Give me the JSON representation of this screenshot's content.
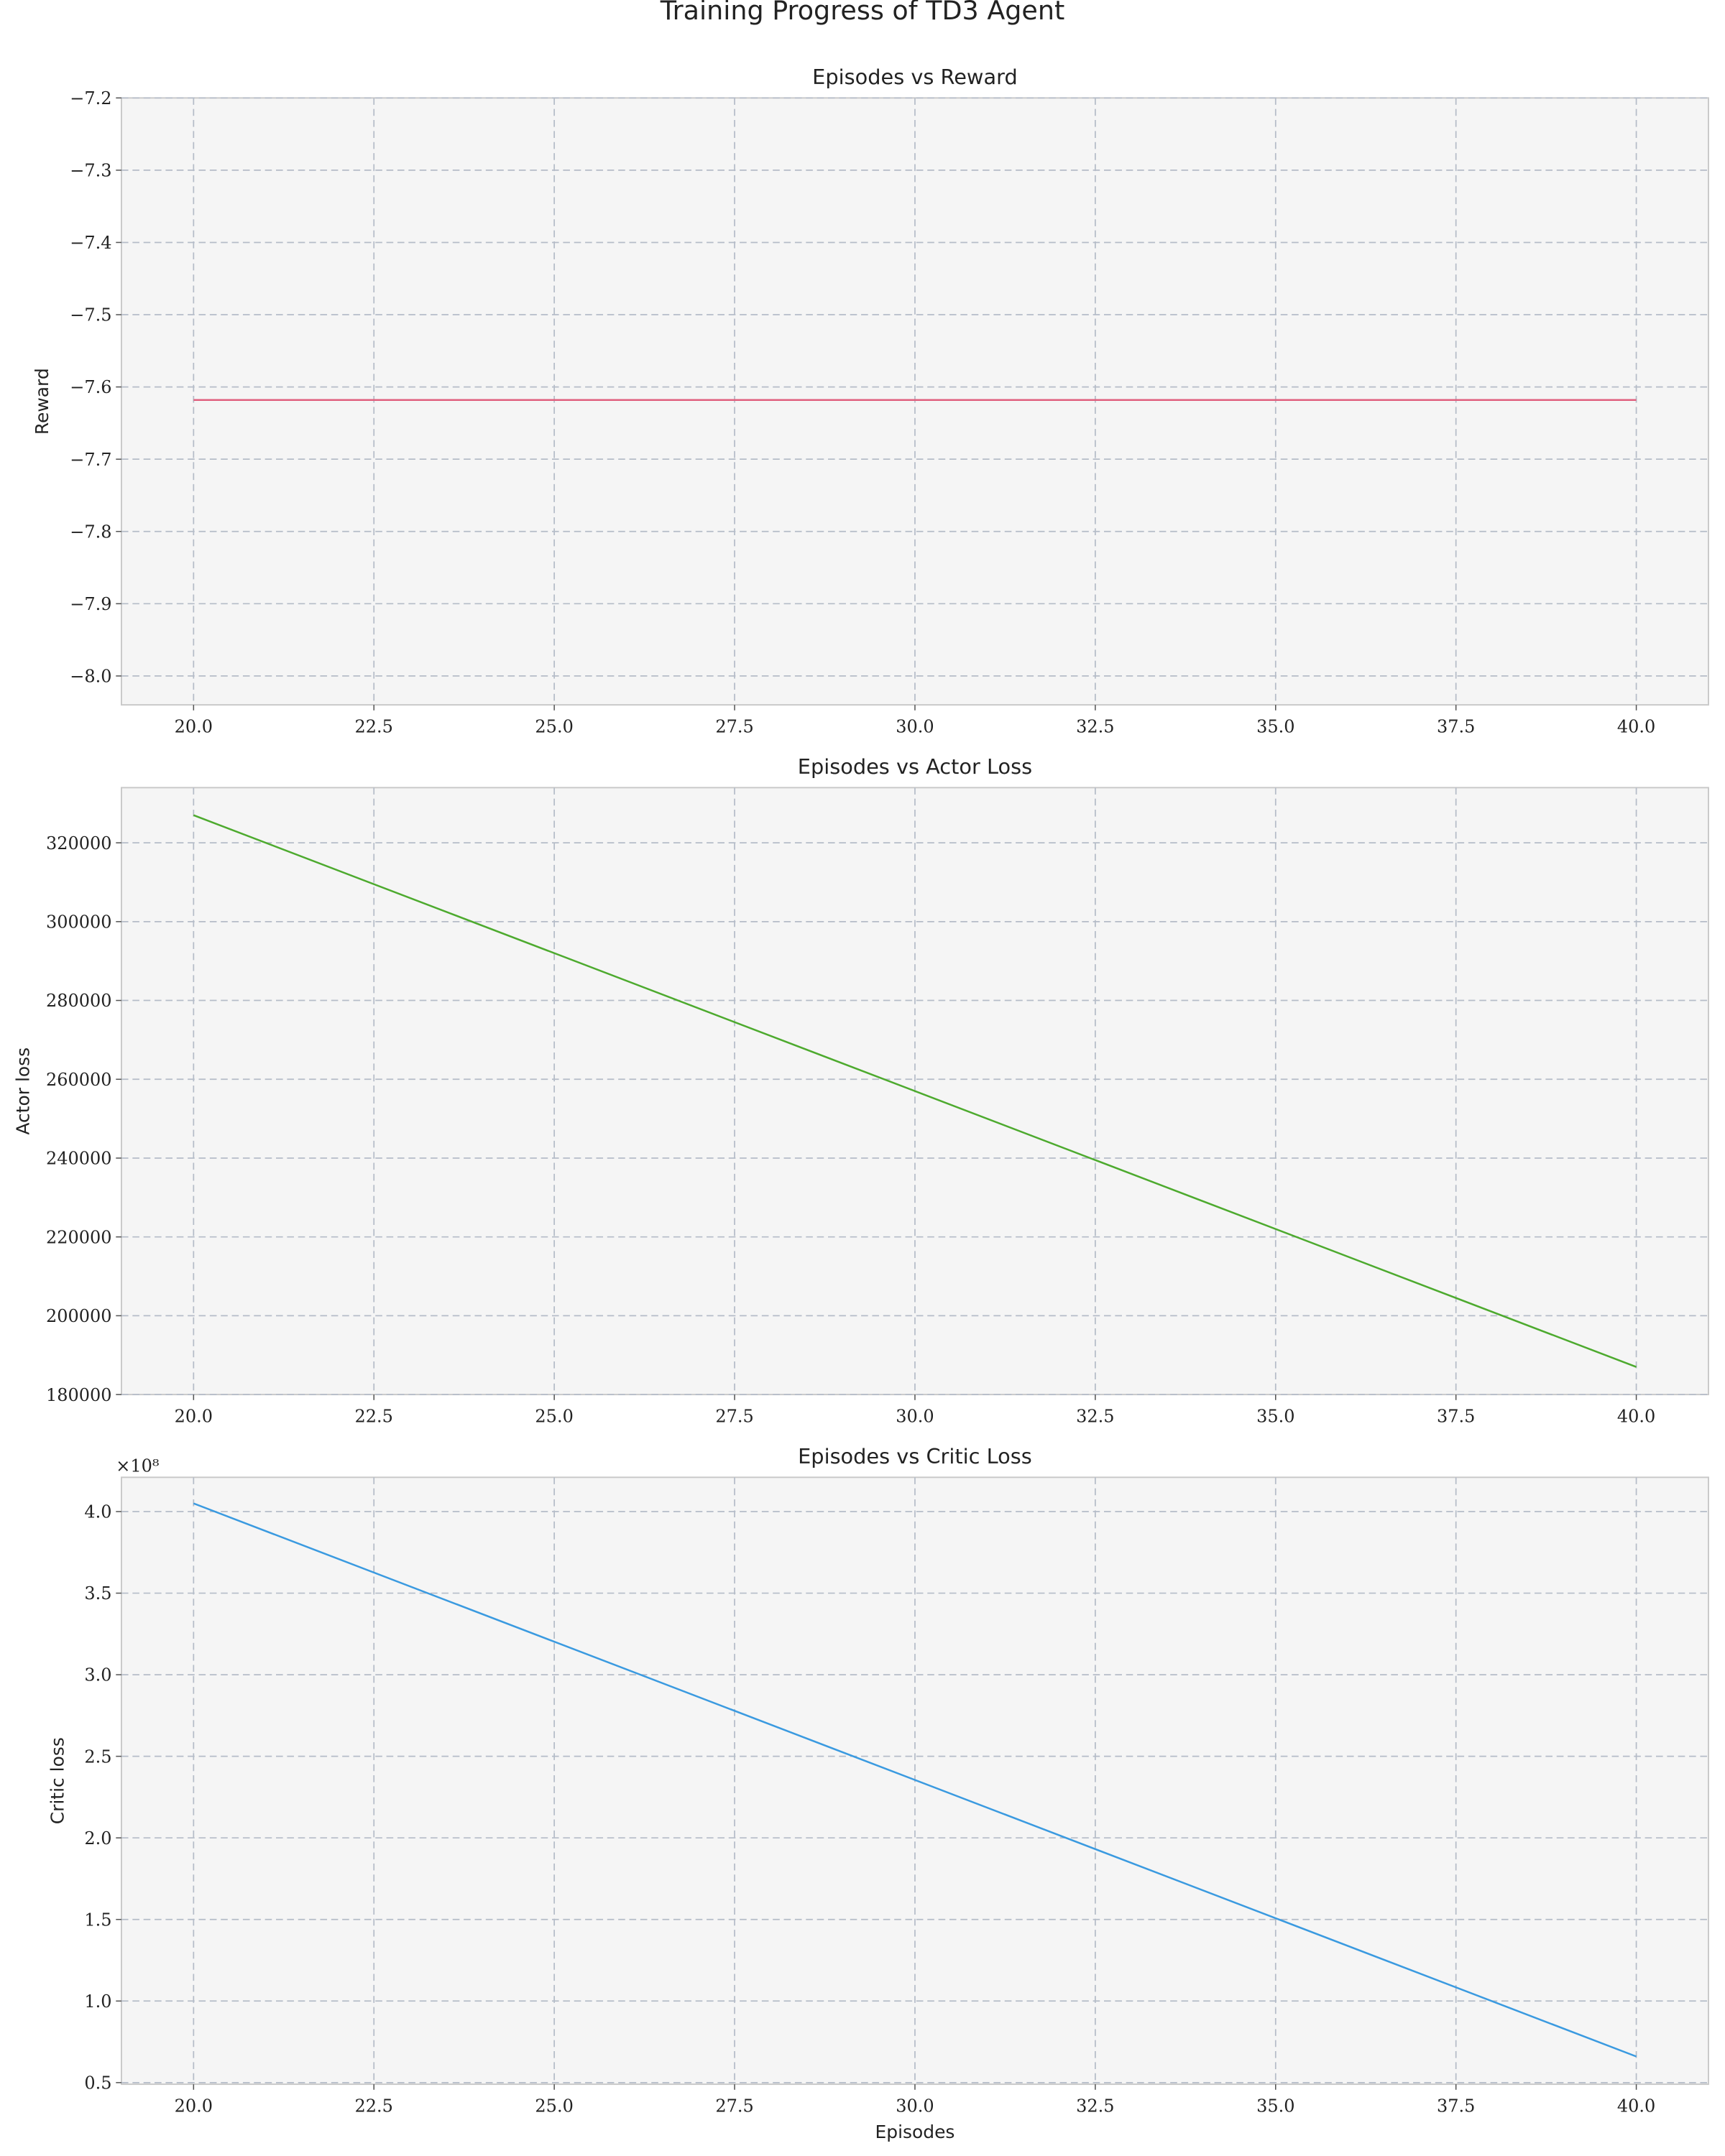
{
  "figure": {
    "title": "Training Progress of TD3 Agent"
  },
  "chart_data": [
    {
      "type": "line",
      "title": "Episodes vs Reward",
      "xlabel": "",
      "ylabel": "Reward",
      "x": [
        20,
        40
      ],
      "series": [
        {
          "values": [
            -7.618,
            -7.618
          ],
          "color": "#e0607e"
        }
      ],
      "xlim": [
        19,
        41
      ],
      "ylim": [
        -8.04,
        -7.2
      ],
      "xticks": [
        20.0,
        22.5,
        25.0,
        27.5,
        30.0,
        32.5,
        35.0,
        37.5,
        40.0
      ],
      "xtick_labels": [
        "20.0",
        "22.5",
        "25.0",
        "27.5",
        "30.0",
        "32.5",
        "35.0",
        "37.5",
        "40.0"
      ],
      "yticks": [
        -7.2,
        -7.3,
        -7.4,
        -7.5,
        -7.6,
        -7.7,
        -7.8,
        -7.9,
        -8.0
      ],
      "ytick_labels": [
        "−7.2",
        "−7.3",
        "−7.4",
        "−7.5",
        "−7.6",
        "−7.7",
        "−7.8",
        "−7.9",
        "−8.0"
      ],
      "offset_label": "",
      "grid": true
    },
    {
      "type": "line",
      "title": "Episodes vs Actor Loss",
      "xlabel": "",
      "ylabel": "Actor loss",
      "x": [
        20,
        40
      ],
      "series": [
        {
          "values": [
            327000,
            187000
          ],
          "color": "#4daa2e"
        }
      ],
      "xlim": [
        19,
        41
      ],
      "ylim": [
        180000,
        334000
      ],
      "xticks": [
        20.0,
        22.5,
        25.0,
        27.5,
        30.0,
        32.5,
        35.0,
        37.5,
        40.0
      ],
      "xtick_labels": [
        "20.0",
        "22.5",
        "25.0",
        "27.5",
        "30.0",
        "32.5",
        "35.0",
        "37.5",
        "40.0"
      ],
      "yticks": [
        180000,
        200000,
        220000,
        240000,
        260000,
        280000,
        300000,
        320000
      ],
      "ytick_labels": [
        "180000",
        "200000",
        "220000",
        "240000",
        "260000",
        "280000",
        "300000",
        "320000"
      ],
      "offset_label": "",
      "grid": true
    },
    {
      "type": "line",
      "title": "Episodes vs Critic Loss",
      "xlabel": "Episodes",
      "ylabel": "Critic loss",
      "x": [
        20,
        40
      ],
      "series": [
        {
          "values": [
            405000000,
            66000000
          ],
          "color": "#3a9ae0"
        }
      ],
      "xlim": [
        19,
        41
      ],
      "ylim": [
        49000000,
        421000000
      ],
      "xticks": [
        20.0,
        22.5,
        25.0,
        27.5,
        30.0,
        32.5,
        35.0,
        37.5,
        40.0
      ],
      "xtick_labels": [
        "20.0",
        "22.5",
        "25.0",
        "27.5",
        "30.0",
        "32.5",
        "35.0",
        "37.5",
        "40.0"
      ],
      "yticks": [
        50000000,
        100000000,
        150000000,
        200000000,
        250000000,
        300000000,
        350000000,
        400000000
      ],
      "ytick_labels": [
        "0.5",
        "1.0",
        "1.5",
        "2.0",
        "2.5",
        "3.0",
        "3.5",
        "4.0"
      ],
      "offset_label": "×10⁸",
      "grid": true
    }
  ]
}
